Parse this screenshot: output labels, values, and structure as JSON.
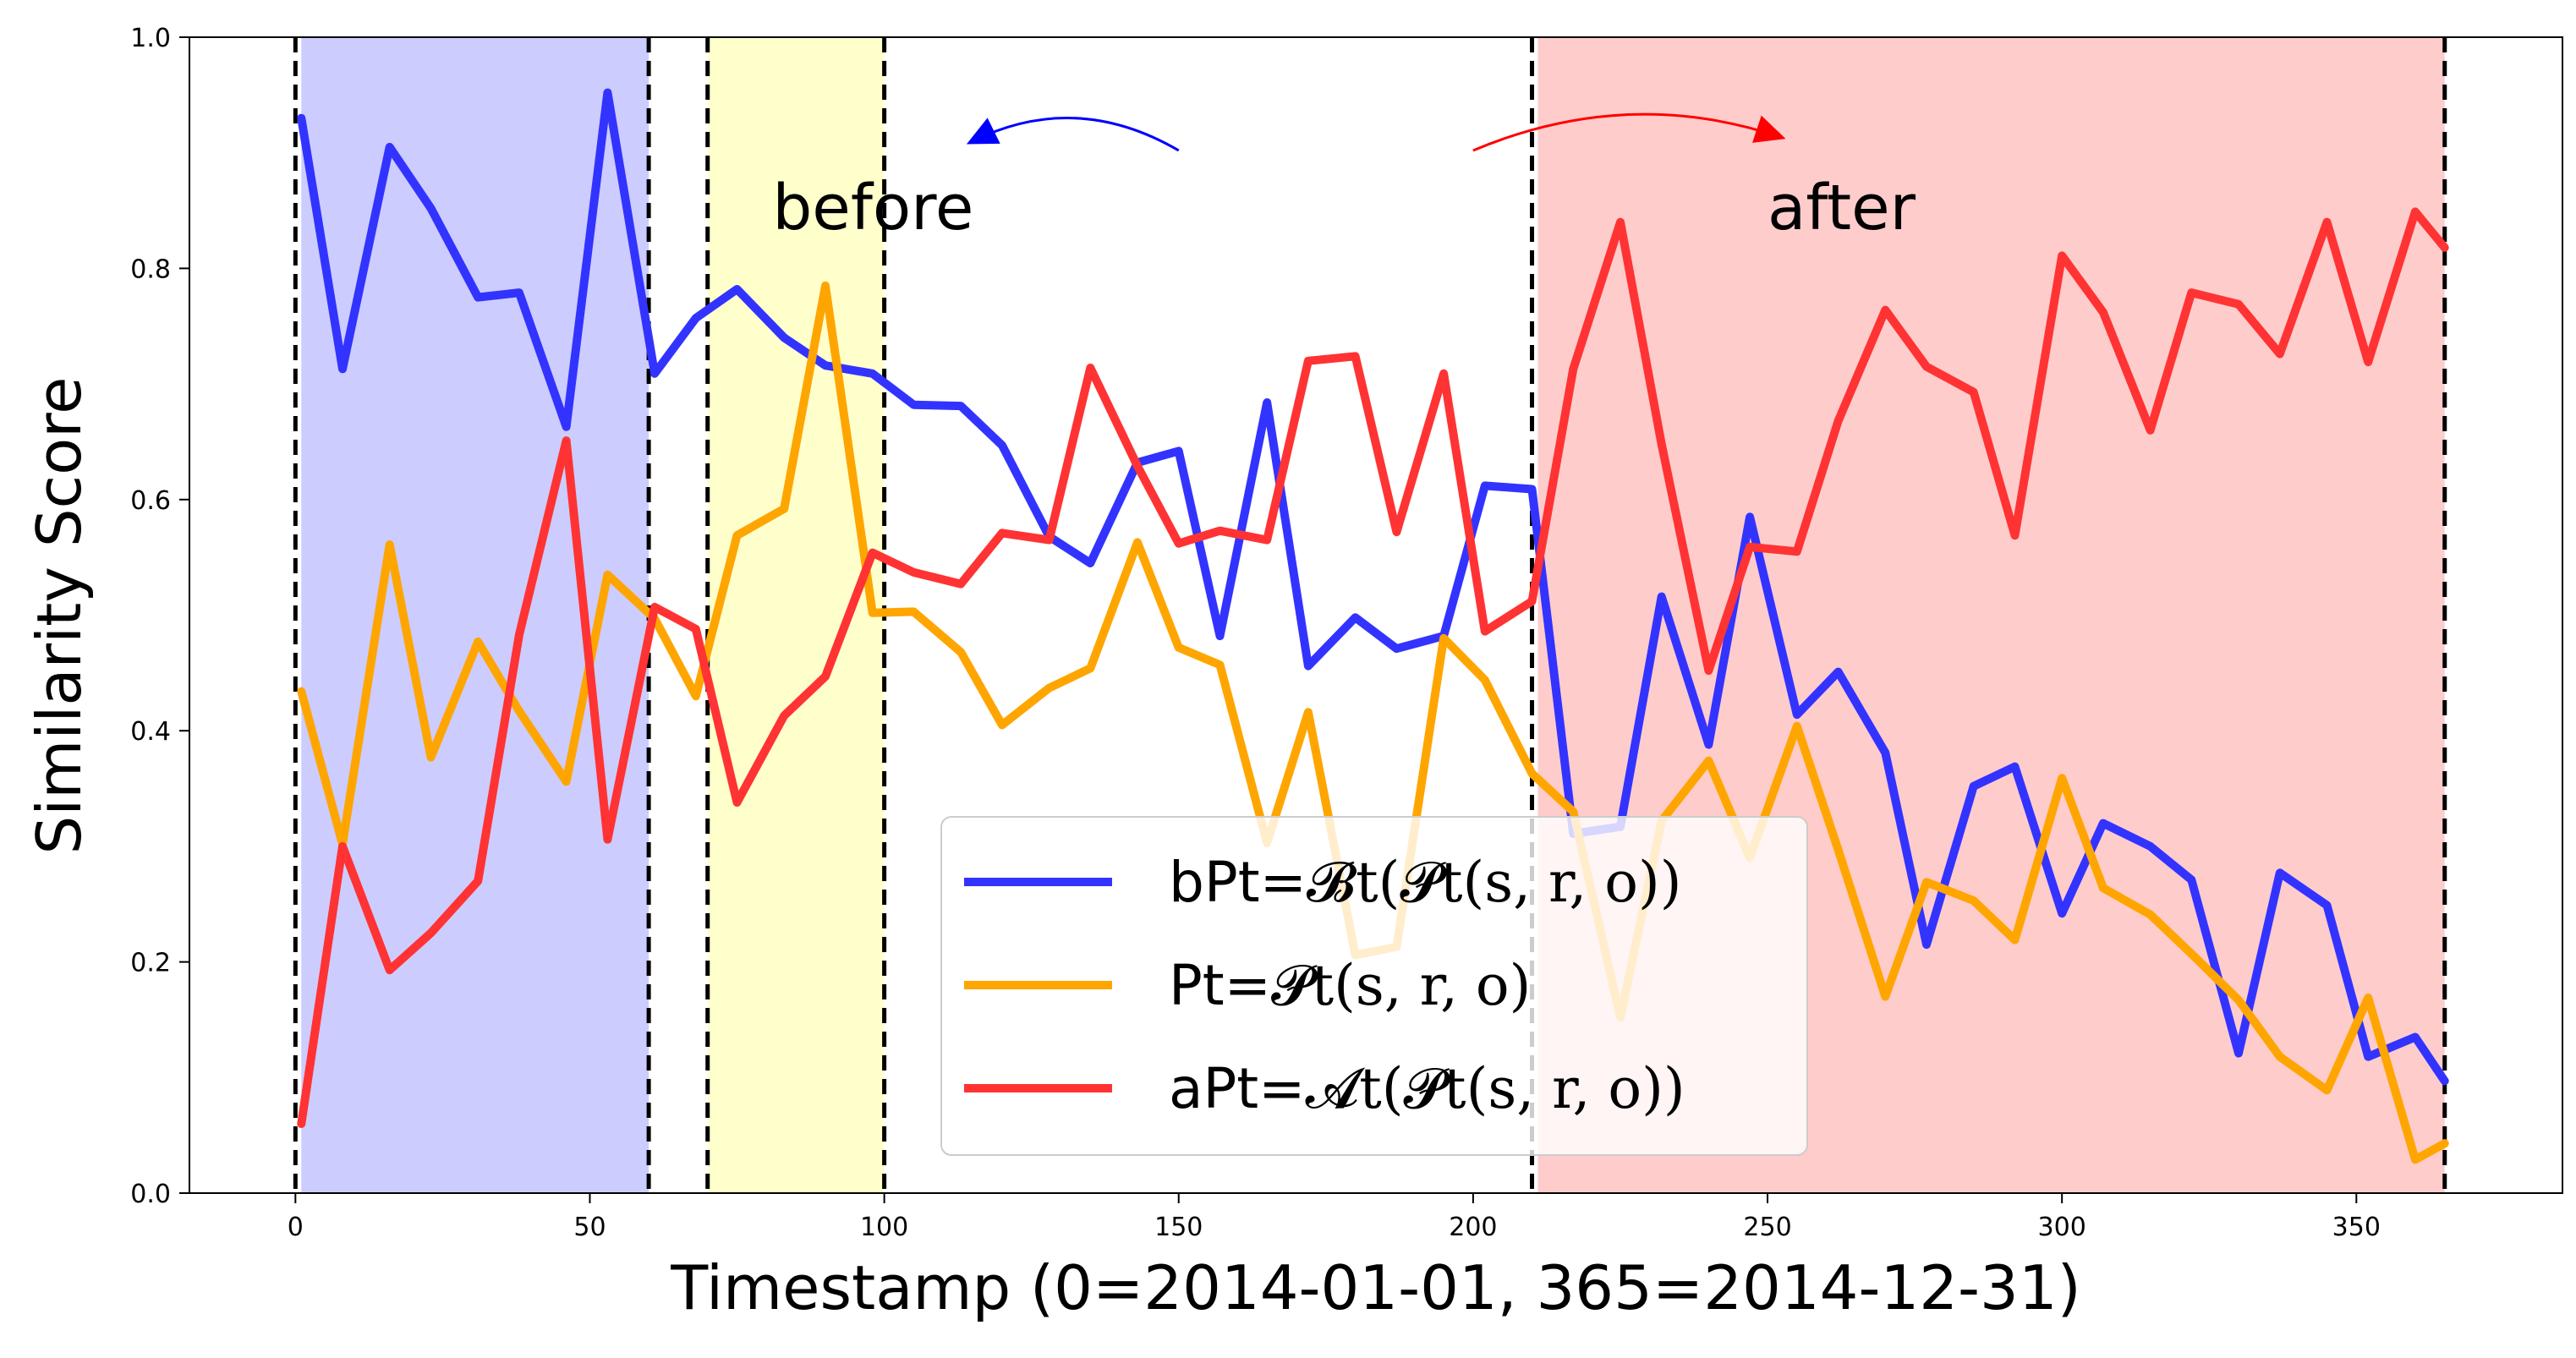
{
  "chart_data": {
    "type": "line",
    "xlabel": "Timestamp (0=2014-01-01, 365=2014-12-31)",
    "ylabel": "Similarity Score",
    "xlim": [
      -18,
      385
    ],
    "ylim": [
      0.0,
      1.0
    ],
    "x_ticks": [
      0,
      50,
      100,
      150,
      200,
      250,
      300,
      350
    ],
    "y_ticks": [
      0.0,
      0.2,
      0.4,
      0.6,
      0.8,
      1.0
    ],
    "x_tick_labels": [
      "0",
      "50",
      "100",
      "150",
      "200",
      "250",
      "300",
      "350"
    ],
    "y_tick_labels": [
      "0.0",
      "0.2",
      "0.4",
      "0.6",
      "0.8",
      "1.0"
    ],
    "grid": false,
    "legend_placement": "lower-center",
    "shaded_regions": [
      {
        "x0": 1,
        "x1": 60,
        "color": "#ccccff"
      },
      {
        "x0": 70,
        "x1": 100,
        "color": "#ffffcc"
      },
      {
        "x0": 211,
        "x1": 365,
        "color": "#ffcccc"
      }
    ],
    "vlines": [
      0,
      60,
      70,
      100,
      210,
      365
    ],
    "annotations": [
      {
        "text": "before",
        "x": 81,
        "y": 0.85,
        "arrow_from": [
          150,
          0.902
        ],
        "arrow_to": [
          115,
          0.91
        ],
        "color": "#0000ff"
      },
      {
        "text": "after",
        "x": 250,
        "y": 0.85,
        "arrow_from": [
          200,
          0.902
        ],
        "arrow_to": [
          252,
          0.914
        ],
        "color": "#ff0000"
      }
    ],
    "x": [
      1,
      8,
      16,
      23,
      31,
      38,
      46,
      53,
      61,
      68,
      75,
      83,
      90,
      98,
      105,
      113,
      120,
      128,
      135,
      143,
      150,
      157,
      165,
      172,
      180,
      187,
      195,
      202,
      210,
      217,
      225,
      232,
      240,
      247,
      255,
      262,
      270,
      277,
      285,
      292,
      300,
      307,
      315,
      322,
      330,
      337,
      345,
      352,
      360,
      365
    ],
    "series": [
      {
        "name": "bPt=",
        "legend_math": "𝓑t(𝓟t(s, r, o))",
        "color": "#3333ff",
        "values": [
          0.93,
          0.713,
          0.905,
          0.852,
          0.775,
          0.779,
          0.663,
          0.952,
          0.709,
          0.757,
          0.782,
          0.74,
          0.716,
          0.709,
          0.682,
          0.681,
          0.647,
          0.568,
          0.545,
          0.632,
          0.642,
          0.482,
          0.684,
          0.456,
          0.498,
          0.471,
          0.482,
          0.612,
          0.609,
          0.311,
          0.317,
          0.516,
          0.388,
          0.585,
          0.414,
          0.451,
          0.381,
          0.215,
          0.352,
          0.369,
          0.242,
          0.32,
          0.3,
          0.271,
          0.121,
          0.277,
          0.249,
          0.118,
          0.135,
          0.097
        ]
      },
      {
        "name": "Pt=",
        "legend_math": "𝓟t(s, r, o)",
        "color": "#ffa500",
        "values": [
          0.434,
          0.302,
          0.561,
          0.377,
          0.477,
          0.417,
          0.356,
          0.535,
          0.497,
          0.43,
          0.569,
          0.592,
          0.785,
          0.502,
          0.503,
          0.468,
          0.405,
          0.437,
          0.454,
          0.563,
          0.472,
          0.457,
          0.303,
          0.416,
          0.206,
          0.213,
          0.48,
          0.444,
          0.363,
          0.33,
          0.152,
          0.322,
          0.374,
          0.29,
          0.404,
          0.297,
          0.17,
          0.269,
          0.253,
          0.219,
          0.359,
          0.264,
          0.241,
          0.207,
          0.167,
          0.118,
          0.089,
          0.169,
          0.029,
          0.043
        ]
      },
      {
        "name": "aPt=",
        "legend_math": "𝓐t(𝓟t(s, r, o))",
        "color": "#ff3333",
        "values": [
          0.06,
          0.3,
          0.193,
          0.225,
          0.27,
          0.483,
          0.651,
          0.306,
          0.507,
          0.488,
          0.338,
          0.413,
          0.447,
          0.554,
          0.537,
          0.527,
          0.571,
          0.565,
          0.714,
          0.629,
          0.562,
          0.573,
          0.565,
          0.72,
          0.724,
          0.572,
          0.709,
          0.486,
          0.512,
          0.713,
          0.84,
          0.648,
          0.452,
          0.559,
          0.555,
          0.668,
          0.764,
          0.715,
          0.693,
          0.569,
          0.811,
          0.762,
          0.66,
          0.779,
          0.769,
          0.726,
          0.84,
          0.719,
          0.849,
          0.818
        ]
      }
    ]
  }
}
